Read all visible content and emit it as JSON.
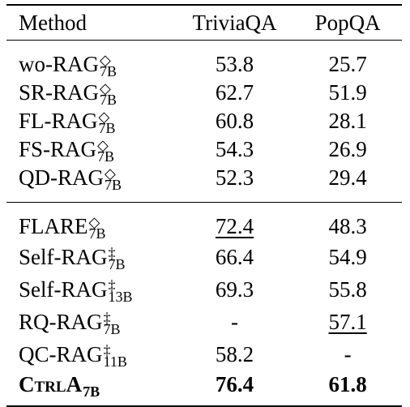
{
  "columns": [
    "Method",
    "TriviaQA",
    "PopQA"
  ],
  "groups": [
    [
      {
        "name": "wo-RAG",
        "sup": "◇",
        "sub": "7B",
        "triviaqa": "53.8",
        "popqa": "25.7"
      },
      {
        "name": "SR-RAG",
        "sup": "◇",
        "sub": "7B",
        "triviaqa": "62.7",
        "popqa": "51.9"
      },
      {
        "name": "FL-RAG",
        "sup": "◇",
        "sub": "7B",
        "triviaqa": "60.8",
        "popqa": "28.1"
      },
      {
        "name": "FS-RAG",
        "sup": "◇",
        "sub": "7B",
        "triviaqa": "54.3",
        "popqa": "26.9"
      },
      {
        "name": "QD-RAG",
        "sup": "◇",
        "sub": "7B",
        "triviaqa": "52.3",
        "popqa": "29.4"
      }
    ],
    [
      {
        "name": "FLARE",
        "sup": "◇",
        "sub": "7B",
        "triviaqa": "72.4",
        "popqa": "48.3"
      },
      {
        "name": "Self-RAG",
        "sup": "‡",
        "sub": "7B",
        "triviaqa": "66.4",
        "popqa": "54.9"
      },
      {
        "name": "Self-RAG",
        "sup": "‡",
        "sub": "13B",
        "triviaqa": "69.3",
        "popqa": "55.8"
      },
      {
        "name": "RQ-RAG",
        "sup": "‡",
        "sub": "7B",
        "triviaqa": "-",
        "popqa": "57.1"
      },
      {
        "name": "QC-RAG",
        "sup": "‡",
        "sub": "11B",
        "triviaqa": "58.2",
        "popqa": "-"
      },
      {
        "name": "CtrlA",
        "sup": "",
        "sub": "7B",
        "triviaqa": "76.4",
        "popqa": "61.8"
      }
    ]
  ]
}
